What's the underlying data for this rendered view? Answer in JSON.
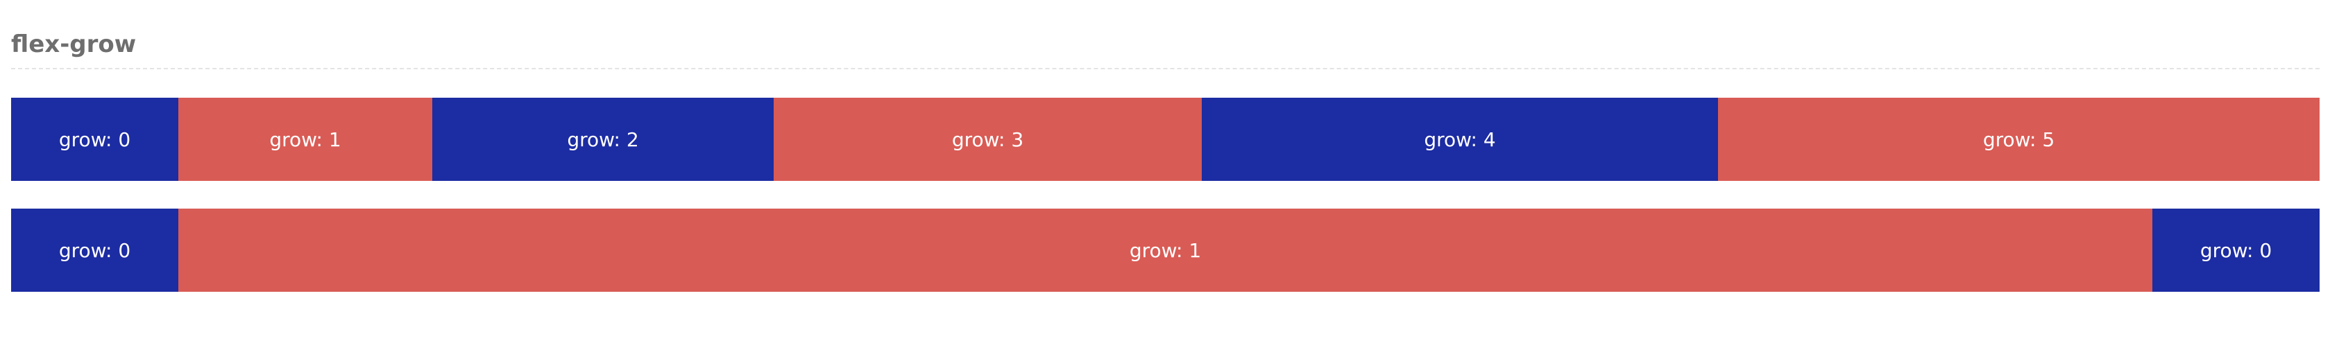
{
  "section": {
    "title": "flex-grow"
  },
  "colors": {
    "blue": "#1c2ca2",
    "red": "#d95b55",
    "title": "#6e6e6e",
    "divider": "#e3e3e3"
  },
  "row1": {
    "items": [
      {
        "label": "grow: 0"
      },
      {
        "label": "grow: 1"
      },
      {
        "label": "grow: 2"
      },
      {
        "label": "grow: 3"
      },
      {
        "label": "grow: 4"
      },
      {
        "label": "grow: 5"
      }
    ]
  },
  "row2": {
    "items": [
      {
        "label": "grow: 0"
      },
      {
        "label": "grow: 1"
      },
      {
        "label": "grow: 0"
      }
    ]
  }
}
